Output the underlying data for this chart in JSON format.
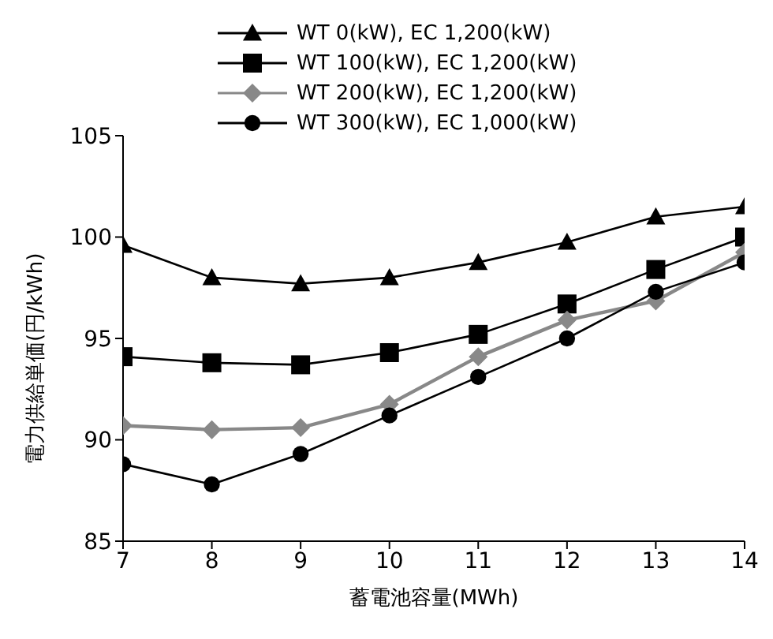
{
  "chart_data": {
    "type": "line",
    "xlabel": "蓄電池容量(MWh)",
    "ylabel": "電力供給単価(円/kWh)",
    "x": [
      7,
      8,
      9,
      10,
      11,
      12,
      13,
      14
    ],
    "xlim": [
      7,
      14
    ],
    "xticks": [
      7,
      8,
      9,
      10,
      11,
      12,
      13,
      14
    ],
    "ylim": [
      85,
      105
    ],
    "yticks": [
      85,
      90,
      95,
      100,
      105
    ],
    "grid": false,
    "legend": "top",
    "line_style": "solid",
    "series": [
      {
        "name": "WT 0(kW), EC 1,200(kW)",
        "color": "#000000",
        "marker": "triangle",
        "values": [
          99.6,
          98.0,
          97.7,
          98.0,
          98.75,
          99.75,
          101.0,
          101.5
        ]
      },
      {
        "name": "WT 100(kW), EC 1,200(kW)",
        "color": "#000000",
        "marker": "square",
        "values": [
          94.1,
          93.8,
          93.7,
          94.3,
          95.2,
          96.7,
          98.4,
          100.0
        ]
      },
      {
        "name": "WT 200(kW), EC 1,200(kW)",
        "color": "#888888",
        "marker": "diamond",
        "values": [
          90.7,
          90.5,
          90.6,
          91.75,
          94.1,
          95.9,
          96.85,
          99.25
        ]
      },
      {
        "name": "WT 300(kW), EC 1,000(kW)",
        "color": "#000000",
        "marker": "circle",
        "values": [
          88.8,
          87.8,
          89.3,
          91.2,
          93.1,
          95.0,
          97.3,
          98.75
        ]
      }
    ]
  }
}
